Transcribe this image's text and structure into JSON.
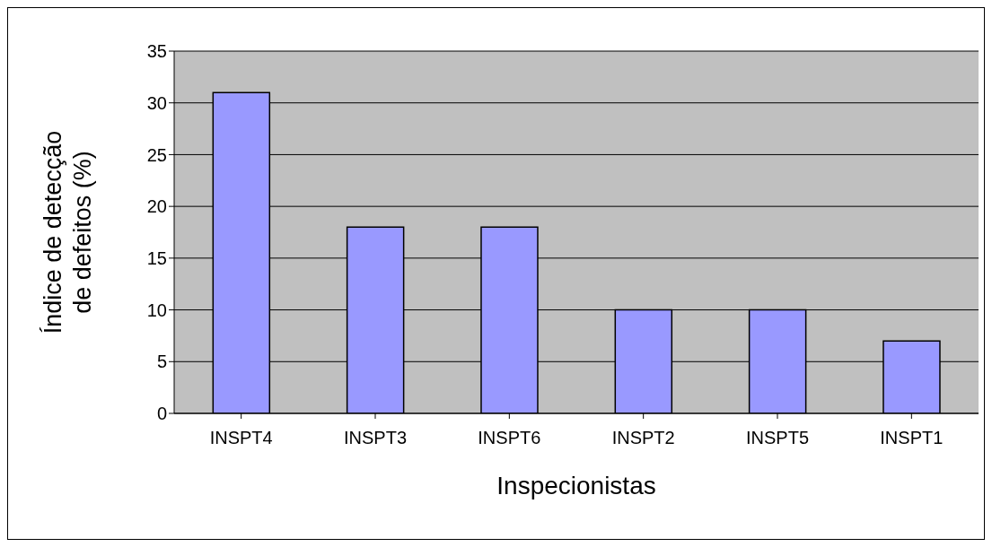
{
  "chart_data": {
    "type": "bar",
    "categories": [
      "INSPT4",
      "INSPT3",
      "INSPT6",
      "INSPT2",
      "INSPT5",
      "INSPT1"
    ],
    "values": [
      31,
      18,
      18,
      10,
      10,
      7
    ],
    "color": "#9999ff",
    "xlabel": "Inspecionistas",
    "ylabel": "Índice de detecção de defeitos (%)",
    "ylim": [
      0,
      35
    ],
    "yticks": [
      0,
      5,
      10,
      15,
      20,
      25,
      30,
      35
    ],
    "grid": "y",
    "legend": false
  }
}
